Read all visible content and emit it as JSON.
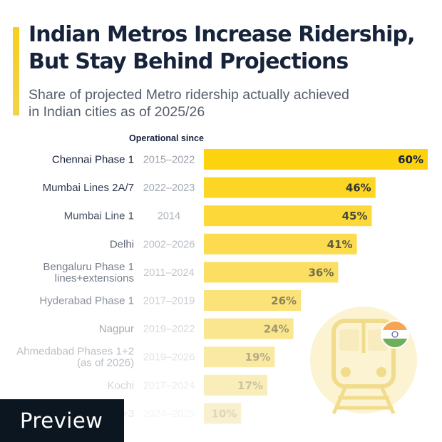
{
  "header": {
    "title": "Indian Metros Increase Ridership, But Stay Behind Projections",
    "subtitle": "Share of projected Metro ridership actually achieved in Indian cities as of 2025/26",
    "column_header": "Operational since"
  },
  "chart_data": {
    "type": "bar",
    "orientation": "horizontal",
    "categories": [
      [
        "Chennai Phase 1"
      ],
      [
        "Mumbai Lines 2A/7"
      ],
      [
        "Mumbai Line 1"
      ],
      [
        "Delhi"
      ],
      [
        "Bengaluru Phase 1",
        "lines+extensions"
      ],
      [
        "Hyderabad Phase 1"
      ],
      [
        "Nagpur"
      ],
      [
        "Ahmedabad Phases 1+2",
        "(as of 2026)"
      ],
      [
        "Kochi"
      ],
      [
        "Pune Phase 1+3"
      ]
    ],
    "operational_since": [
      "2015–2022",
      "2022–2023",
      "2014",
      "2002–2026",
      "2011–2024",
      "2017–2019",
      "2019–2022",
      "2019–2026",
      "2017–2024",
      "2024–2025"
    ],
    "values": [
      60,
      46,
      45,
      41,
      36,
      26,
      24,
      19,
      17,
      10
    ],
    "value_labels": [
      "60%",
      "46%",
      "45%",
      "41%",
      "36%",
      "26%",
      "24%",
      "19%",
      "17%",
      "10%"
    ],
    "unit": "%",
    "xlim": [
      0,
      60
    ],
    "grid": false,
    "legend": "none",
    "colors": {
      "bar_top": "#fdd20e",
      "bar_bottom": "#f9f0ce",
      "text_dark": "#17233a",
      "year_text": "#9aa1ab"
    }
  },
  "illustration": {
    "icon": "metro-train-icon",
    "flag": "india-flag-icon"
  },
  "watermark": {
    "label": "Preview"
  }
}
